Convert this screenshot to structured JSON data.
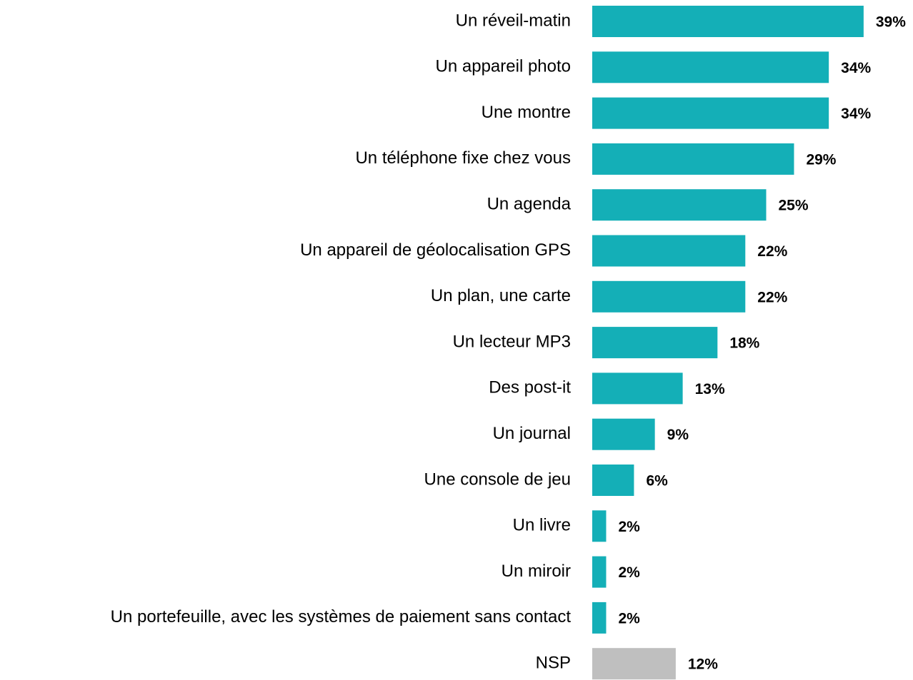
{
  "chart_data": {
    "type": "bar",
    "orientation": "horizontal",
    "categories": [
      "Un réveil-matin",
      "Un appareil photo",
      "Une montre",
      "Un téléphone fixe chez vous",
      "Un agenda",
      "Un appareil de géolocalisation GPS",
      "Un plan, une carte",
      "Un lecteur MP3",
      "Des post-it",
      "Un journal",
      "Une console de jeu",
      "Un livre",
      "Un miroir",
      "Un portefeuille, avec les systèmes de paiement sans contact",
      "NSP"
    ],
    "values": [
      39,
      34,
      34,
      29,
      25,
      22,
      22,
      18,
      13,
      9,
      6,
      2,
      2,
      2,
      12
    ],
    "value_labels": [
      "39%",
      "34%",
      "34%",
      "29%",
      "25%",
      "22%",
      "22%",
      "18%",
      "13%",
      "9%",
      "6%",
      "2%",
      "2%",
      "2%",
      "12%"
    ],
    "colors": [
      "#14afb7",
      "#14afb7",
      "#14afb7",
      "#14afb7",
      "#14afb7",
      "#14afb7",
      "#14afb7",
      "#14afb7",
      "#14afb7",
      "#14afb7",
      "#14afb7",
      "#14afb7",
      "#14afb7",
      "#14afb7",
      "#bfbfbf"
    ]
  }
}
